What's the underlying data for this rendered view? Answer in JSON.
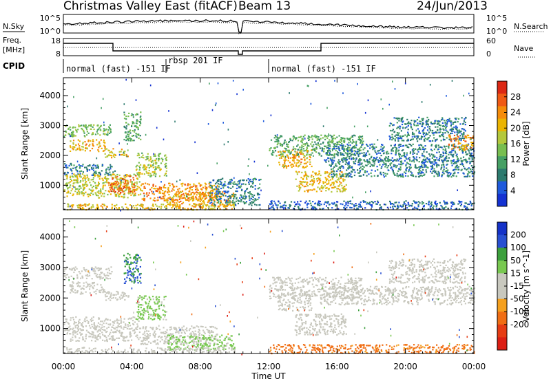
{
  "header": {
    "radar_title": "Christmas Valley East (fitACF)",
    "beam_label": "Beam 13",
    "date": "24/Jun/2013"
  },
  "top_panel": {
    "left_label": "N.Sky",
    "right_label": "N.Search",
    "y_ticks_left": [
      "10^5",
      "10^0"
    ],
    "y_ticks_right": [
      "10^5",
      "10^0"
    ]
  },
  "freq_panel": {
    "left_label_line1": "Freq.",
    "left_label_line2": "[MHz]",
    "right_label": "Nave",
    "y_ticks_left": [
      "18",
      "8"
    ],
    "y_ticks_right": [
      "60",
      "0"
    ]
  },
  "cpid": {
    "label": "CPID",
    "segments": [
      {
        "text": "normal (fast) -151 IF",
        "start_hour": 0
      },
      {
        "text": "rbsp 201 IF",
        "start_hour": 6
      },
      {
        "text": "normal (fast) -151 IF",
        "start_hour": 12
      }
    ]
  },
  "chart_data": [
    {
      "type": "heatmap",
      "title": "",
      "xlabel": "Time UT",
      "ylabel": "Slant Range [km]",
      "xlim": [
        0,
        24
      ],
      "ylim": [
        180,
        4600
      ],
      "x_tick_labels": [
        "00:00",
        "04:00",
        "08:00",
        "12:00",
        "16:00",
        "20:00",
        "00:00"
      ],
      "y_ticks": [
        1000,
        2000,
        3000,
        4000
      ],
      "colorbar": {
        "label": "Power [dB]",
        "ticks": [
          4,
          8,
          12,
          16,
          20,
          24,
          28
        ],
        "colors": [
          "#1432d2",
          "#1e5adc",
          "#2c7a6e",
          "#46a064",
          "#78be50",
          "#b4c83c",
          "#ebb400",
          "#f58c0a",
          "#f05a14",
          "#dc2814"
        ]
      },
      "echo_regions": [
        {
          "time": [
            0.0,
            2.8
          ],
          "range": [
            2650,
            3050
          ],
          "value": 14
        },
        {
          "time": [
            0.3,
            2.4
          ],
          "range": [
            2150,
            2550
          ],
          "value": 22
        },
        {
          "time": [
            2.4,
            3.8
          ],
          "range": [
            1950,
            2250
          ],
          "value": 20
        },
        {
          "time": [
            0.0,
            3.0
          ],
          "range": [
            1350,
            1750
          ],
          "value": 8
        },
        {
          "time": [
            0.0,
            4.5
          ],
          "range": [
            600,
            1400
          ],
          "value": 18
        },
        {
          "time": [
            2.6,
            4.2
          ],
          "range": [
            750,
            1350
          ],
          "value": 26
        },
        {
          "time": [
            4.5,
            9.0
          ],
          "range": [
            500,
            1100
          ],
          "value": 24
        },
        {
          "time": [
            4.2,
            6.0
          ],
          "range": [
            1300,
            2100
          ],
          "value": 16
        },
        {
          "time": [
            3.5,
            4.5
          ],
          "range": [
            2500,
            3500
          ],
          "value": 12
        },
        {
          "time": [
            6.0,
            10.0
          ],
          "range": [
            300,
            800
          ],
          "value": 22
        },
        {
          "time": [
            8.5,
            11.5
          ],
          "range": [
            350,
            1250
          ],
          "value": 8
        },
        {
          "time": [
            0.0,
            10.0
          ],
          "range": [
            200,
            400
          ],
          "value": 20
        },
        {
          "time": [
            12.0,
            17.5
          ],
          "range": [
            2000,
            2700
          ],
          "value": 12
        },
        {
          "time": [
            12.5,
            14.5
          ],
          "range": [
            1600,
            2200
          ],
          "value": 22
        },
        {
          "time": [
            13.5,
            16.5
          ],
          "range": [
            800,
            1500
          ],
          "value": 20
        },
        {
          "time": [
            15.0,
            24.0
          ],
          "range": [
            1800,
            2400
          ],
          "value": 8
        },
        {
          "time": [
            15.5,
            24.0
          ],
          "range": [
            1300,
            1900
          ],
          "value": 8
        },
        {
          "time": [
            19.0,
            23.5
          ],
          "range": [
            2500,
            3300
          ],
          "value": 8
        },
        {
          "time": [
            22.5,
            24.0
          ],
          "range": [
            2200,
            2700
          ],
          "value": 24
        },
        {
          "time": [
            12.0,
            24.0
          ],
          "range": [
            200,
            500
          ],
          "value": 6
        }
      ]
    },
    {
      "type": "heatmap",
      "title": "",
      "xlabel": "Time UT",
      "ylabel": "Slant Range [km]",
      "xlim": [
        0,
        24
      ],
      "ylim": [
        180,
        4600
      ],
      "x_tick_labels": [
        "00:00",
        "04:00",
        "08:00",
        "12:00",
        "16:00",
        "20:00",
        "00:00"
      ],
      "y_ticks": [
        1000,
        2000,
        3000,
        4000
      ],
      "colorbar": {
        "label": "Velocity [m s^-1]",
        "ticks": [
          "200",
          "100",
          "50",
          "15",
          "-15",
          "-50",
          "-100",
          "-200"
        ],
        "colors": [
          "#1432c8",
          "#2850d2",
          "#3ca03c",
          "#78c850",
          "#c8c8be",
          "#c8c8be",
          "#f5a01e",
          "#f06e14",
          "#e63c14",
          "#dc1e14"
        ]
      },
      "echo_regions": [
        {
          "time": [
            0.0,
            2.8
          ],
          "range": [
            2650,
            3050
          ],
          "value": 0
        },
        {
          "time": [
            0.3,
            2.4
          ],
          "range": [
            2150,
            2550
          ],
          "value": 0
        },
        {
          "time": [
            2.4,
            3.8
          ],
          "range": [
            1950,
            2250
          ],
          "value": 0
        },
        {
          "time": [
            0.0,
            4.5
          ],
          "range": [
            600,
            1400
          ],
          "value": 0
        },
        {
          "time": [
            4.5,
            9.0
          ],
          "range": [
            500,
            1100
          ],
          "value": 30
        },
        {
          "time": [
            4.2,
            6.0
          ],
          "range": [
            1300,
            2100
          ],
          "value": 60
        },
        {
          "time": [
            3.5,
            4.5
          ],
          "range": [
            2500,
            3500
          ],
          "value": 150
        },
        {
          "time": [
            6.0,
            10.0
          ],
          "range": [
            300,
            800
          ],
          "value": 60
        },
        {
          "time": [
            0.0,
            10.0
          ],
          "range": [
            200,
            400
          ],
          "value": 0
        },
        {
          "time": [
            12.0,
            17.5
          ],
          "range": [
            2000,
            2700
          ],
          "value": 25
        },
        {
          "time": [
            12.5,
            14.5
          ],
          "range": [
            1600,
            2200
          ],
          "value": 0
        },
        {
          "time": [
            13.5,
            16.5
          ],
          "range": [
            800,
            1500
          ],
          "value": 0
        },
        {
          "time": [
            15.0,
            24.0
          ],
          "range": [
            1800,
            2400
          ],
          "value": 0
        },
        {
          "time": [
            19.0,
            23.5
          ],
          "range": [
            2500,
            3300
          ],
          "value": 0
        },
        {
          "time": [
            12.0,
            24.0
          ],
          "range": [
            200,
            500
          ],
          "value": -60
        }
      ]
    }
  ]
}
